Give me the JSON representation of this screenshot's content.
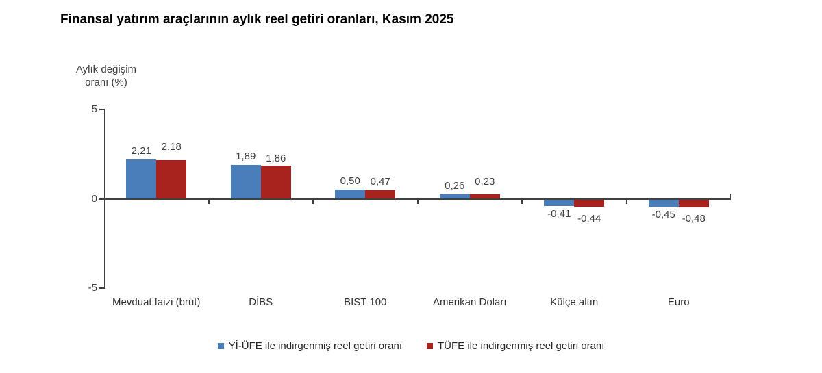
{
  "title": "Finansal yatırım araçlarının aylık reel getiri oranları, Kasım 2025",
  "y_axis": {
    "label_display": "Aylık değişim\noranı (%)",
    "tick_labels": [
      "5",
      "0",
      "-5"
    ]
  },
  "chart_data": {
    "type": "bar",
    "title": "Finansal yatırım araçlarının aylık reel getiri oranları, Kasım 2025",
    "xlabel": "",
    "ylabel": "Aylık değişim oranı (%)",
    "ylim": [
      -5,
      5
    ],
    "yticks": [
      5,
      0,
      -5
    ],
    "grid": false,
    "legend_position": "bottom",
    "categories": [
      "Mevduat faizi (brüt)",
      "DİBS",
      "BIST 100",
      "Amerikan Doları",
      "Külçe altın",
      "Euro"
    ],
    "series": [
      {
        "name": "Yİ-ÜFE ile indirgenmiş reel getiri oranı",
        "color": "#4a7eba",
        "values": [
          2.21,
          1.89,
          0.5,
          0.26,
          -0.41,
          -0.45
        ],
        "value_labels": [
          "2,21",
          "1,89",
          "0,50",
          "0,26",
          "-0,41",
          "-0,45"
        ],
        "label_dy": [
          0,
          0,
          0,
          0,
          0,
          0
        ]
      },
      {
        "name": "TÜFE ile indirgenmiş reel getiri oranı",
        "color": "#a8221e",
        "values": [
          2.18,
          1.86,
          0.47,
          0.23,
          -0.44,
          -0.48
        ],
        "value_labels": [
          "2,18",
          "1,86",
          "0,47",
          "0,23",
          "-0,44",
          "-0,48"
        ],
        "label_dy": [
          -7,
          2,
          0,
          -6,
          6,
          5
        ]
      }
    ],
    "axis_color": "#404040",
    "text_color": "#404040",
    "background": "#ffffff"
  }
}
